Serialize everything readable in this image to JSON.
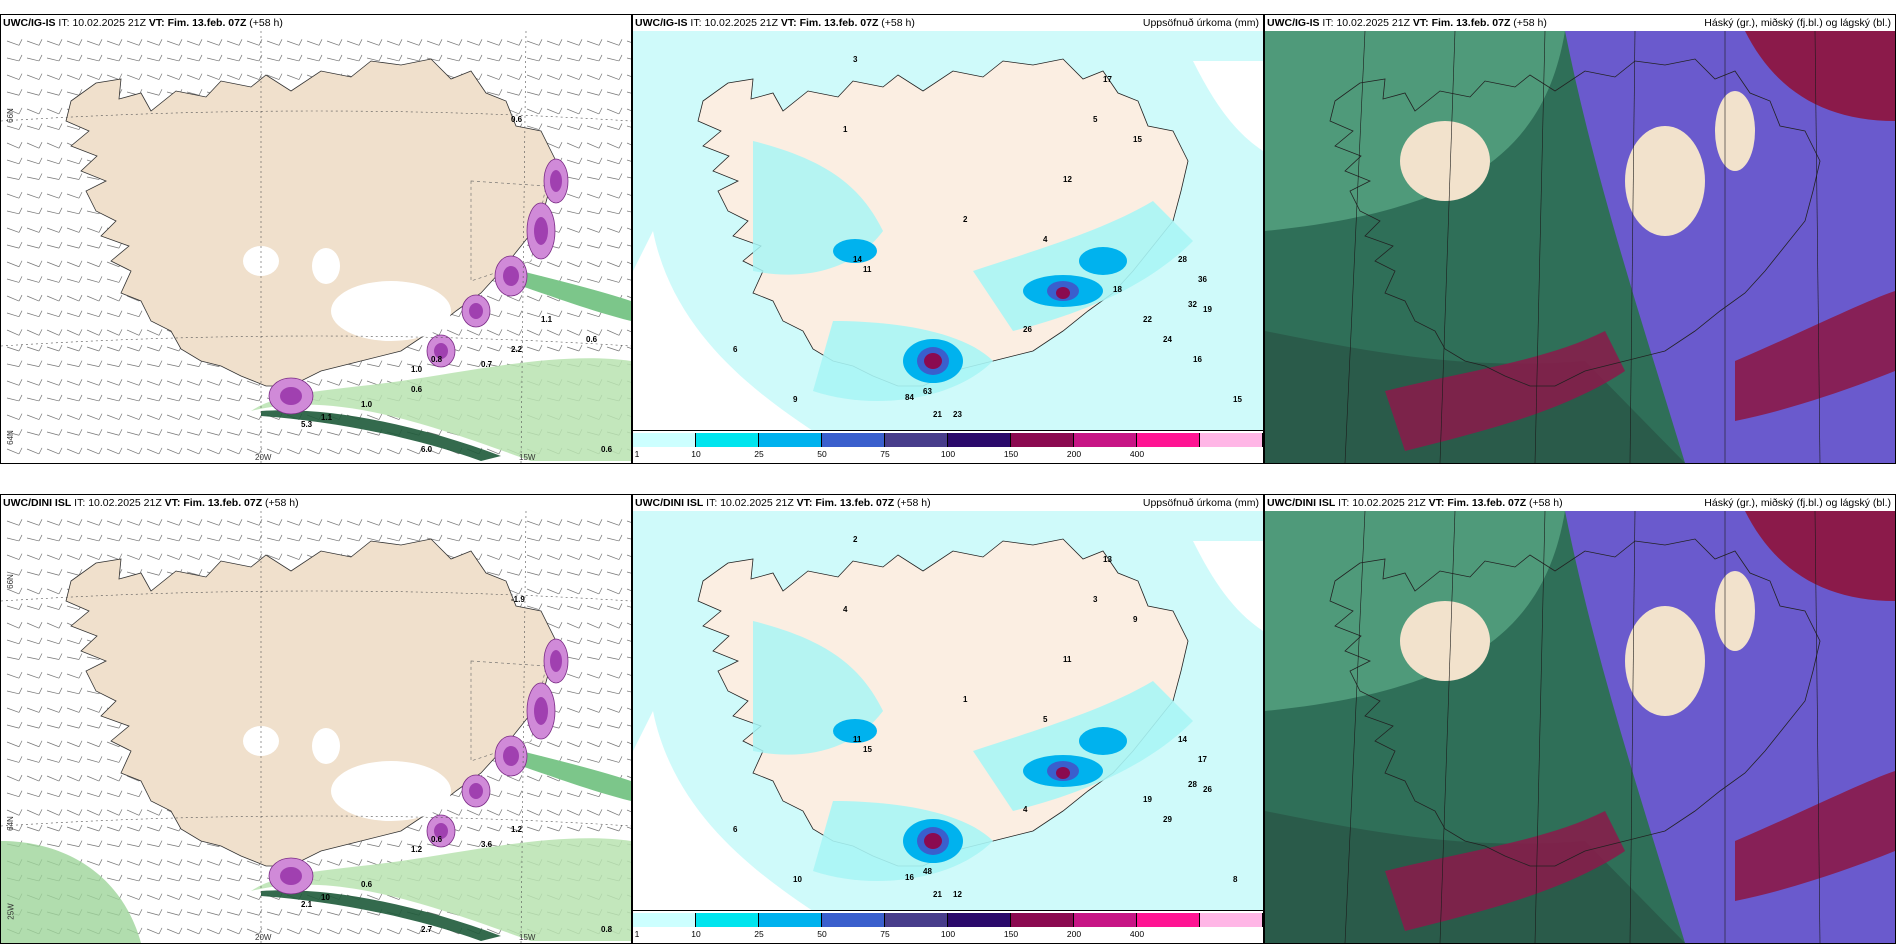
{
  "rows": [
    {
      "model": "UWC/IG-IS",
      "it_label": "IT:",
      "it_value": "10.02.2025 21Z",
      "vt_label": "VT:",
      "vt_value": "Fim. 13.feb. 07Z",
      "lead": "(+58 h)",
      "panel1": {
        "lat1": "66N",
        "lat2": "64N",
        "lon1": "20W",
        "lon2": "15W",
        "lon3": "25W",
        "labels": [
          "0.6",
          "1.0",
          "0.8",
          "1.0",
          "0.7",
          "2.2",
          "0.6",
          "6.0",
          "5.3",
          "1.1",
          "0.6",
          "0.6",
          "1.1"
        ]
      },
      "panel2": {
        "title": "Uppsöfnuð úrkoma (mm)",
        "labels": [
          "3",
          "1",
          "2",
          "5",
          "4",
          "12",
          "17",
          "15",
          "28",
          "36",
          "32",
          "19",
          "22",
          "24",
          "63",
          "84",
          "21",
          "23",
          "14",
          "15",
          "6",
          "9",
          "11",
          "26",
          "18",
          "16"
        ]
      },
      "panel3": {
        "title": "Háský (gr.), miðský (fj.bl.) og lágský (bl.)"
      }
    },
    {
      "model": "UWC/DINI ISL",
      "it_label": "IT:",
      "it_value": "10.02.2025 21Z",
      "vt_label": "VT:",
      "vt_value": "Fim. 13.feb. 07Z",
      "lead": "(+58 h)",
      "panel1": {
        "lat1": "66N",
        "lat2": "64N",
        "lon1": "20W",
        "lon2": "15W",
        "lon3": "25W",
        "labels": [
          "-1.9",
          "0.6",
          "0.6",
          "1.2",
          "3.6",
          "1.2",
          "0.8",
          "2.7",
          "2.1",
          "10"
        ]
      },
      "panel2": {
        "title": "Uppsöfnuð úrkoma (mm)",
        "labels": [
          "2",
          "4",
          "1",
          "3",
          "5",
          "11",
          "13",
          "9",
          "14",
          "17",
          "28",
          "26",
          "19",
          "29",
          "48",
          "16",
          "21",
          "12",
          "11",
          "8",
          "6",
          "10",
          "15",
          "4"
        ]
      },
      "panel3": {
        "title": "Háský (gr.), miðský (fj.bl.) og lágský (bl.)"
      }
    }
  ],
  "colorbar": {
    "labels": [
      "1",
      "10",
      "25",
      "50",
      "75",
      "100",
      "150",
      "200",
      "400"
    ],
    "colors": [
      "#ccffff",
      "#00e5ee",
      "#00b2ee",
      "#3a5fcd",
      "#483d8b",
      "#2b0a6b",
      "#8b0a50",
      "#c71585",
      "#ff1493",
      "#ffb6e6"
    ]
  },
  "colors": {
    "land": "#f0e0cc",
    "land2": "#fbeee2",
    "cyan": "#a8f5f5",
    "green": "#3cb371",
    "darkgreen": "#1e5a3a",
    "purple": "#6a5acd",
    "maroon": "#8b1a4a"
  }
}
